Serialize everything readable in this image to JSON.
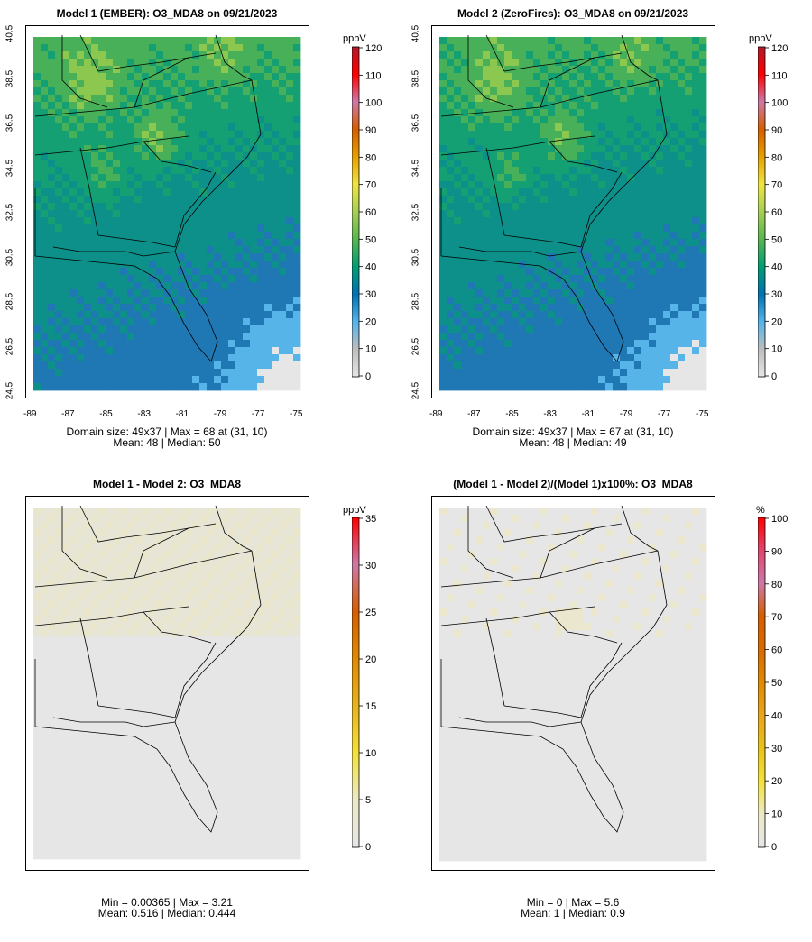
{
  "chart_data": [
    {
      "type": "heatmap",
      "title": "Model 1 (EMBER): O3_MDA8 on 09/21/2023",
      "unit": "ppbV",
      "colorbar_ticks": [
        "0",
        "10",
        "20",
        "30",
        "40",
        "50",
        "60",
        "70",
        "80",
        "90",
        "100",
        "110",
        "120"
      ],
      "x_ticks": [
        "-89",
        "-87",
        "-85",
        "-83",
        "-81",
        "-79",
        "-77",
        "-75"
      ],
      "y_ticks": [
        "24.5",
        "26.5",
        "28.5",
        "30.5",
        "32.5",
        "34.5",
        "36.5",
        "38.5",
        "40.5"
      ],
      "xlim": [
        -89,
        -75
      ],
      "ylim": [
        24.5,
        40.5
      ],
      "stats_line1": "Domain size: 49x37 | Max = 68 at (31, 10)",
      "stats_line2": "Mean: 48 |  Median: 50",
      "domain_size": "49x37",
      "max": 68,
      "max_at": "(31, 10)",
      "mean": 48,
      "median": 50
    },
    {
      "type": "heatmap",
      "title": "Model 2 (ZeroFires): O3_MDA8 on 09/21/2023",
      "unit": "ppbV",
      "colorbar_ticks": [
        "0",
        "10",
        "20",
        "30",
        "40",
        "50",
        "60",
        "70",
        "80",
        "90",
        "100",
        "110",
        "120"
      ],
      "x_ticks": [
        "-89",
        "-87",
        "-85",
        "-83",
        "-81",
        "-79",
        "-77",
        "-75"
      ],
      "y_ticks": [
        "24.5",
        "26.5",
        "28.5",
        "30.5",
        "32.5",
        "34.5",
        "36.5",
        "38.5",
        "40.5"
      ],
      "xlim": [
        -89,
        -75
      ],
      "ylim": [
        24.5,
        40.5
      ],
      "stats_line1": "Domain size: 49x37 | Max = 67 at (31, 10)",
      "stats_line2": "Mean: 48 |  Median: 49",
      "domain_size": "49x37",
      "max": 67,
      "max_at": "(31, 10)",
      "mean": 48,
      "median": 49
    },
    {
      "type": "heatmap",
      "title": "Model 1 - Model 2: O3_MDA8",
      "unit": "ppbV",
      "colorbar_ticks": [
        "0",
        "5",
        "10",
        "15",
        "20",
        "25",
        "30",
        "35"
      ],
      "stats_line1": "Min = 0.00365 | Max = 3.21",
      "stats_line2": "Mean: 0.516 |  Median: 0.444",
      "min": 0.00365,
      "max": 3.21,
      "mean": 0.516,
      "median": 0.444
    },
    {
      "type": "heatmap",
      "title": "(Model 1 - Model 2)/(Model 1)x100%: O3_MDA8",
      "unit": "%",
      "colorbar_ticks": [
        "0",
        "10",
        "20",
        "30",
        "40",
        "50",
        "60",
        "70",
        "80",
        "90",
        "100"
      ],
      "stats_line1": "Min = 0 | Max = 5.6",
      "stats_line2": "Mean: 1 |  Median: 0.9",
      "min": 0,
      "max": 5.6,
      "mean": 1,
      "median": 0.9
    }
  ],
  "colors": {
    "o3_scale": [
      "#e6e6e6",
      "#bdbdbd",
      "#56b4e9",
      "#0072b2",
      "#009e73",
      "#5ab552",
      "#a5cf55",
      "#f0e442",
      "#e6a000",
      "#d55e00",
      "#cc79a7",
      "#ff0000",
      "#b2182b"
    ],
    "diff_scale": [
      "#e6e6e6",
      "#ece9c8",
      "#f3e23a",
      "#e8b21c",
      "#e08a00",
      "#d55e00",
      "#cc79a7",
      "#ff0000"
    ],
    "pct_scale": [
      "#e6e6e6",
      "#ece9c8",
      "#f3e23a",
      "#e8c21c",
      "#e8a51c",
      "#e08a00",
      "#d86a00",
      "#d55e00",
      "#cc79a7",
      "#e0456e",
      "#ff0000"
    ],
    "state_lines": "#000000"
  }
}
